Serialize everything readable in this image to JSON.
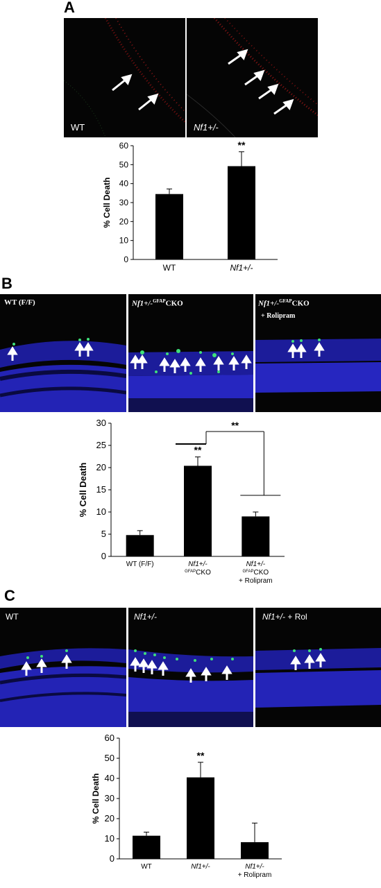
{
  "panels": [
    {
      "letter": "A",
      "images": [
        {
          "label": "WT"
        },
        {
          "label": "Nf1+/-"
        }
      ]
    },
    {
      "letter": "B",
      "images": [
        {
          "label": "WT (F/F)"
        },
        {
          "label_main": "Nf1+/-",
          "label_sup": "GFAP",
          "label_tail": "CKO"
        },
        {
          "label_main": "Nf1+/-",
          "label_sup": "GFAP",
          "label_tail": "CKO",
          "label_line2": "+ Rolipram"
        }
      ]
    },
    {
      "letter": "C",
      "images": [
        {
          "label": "WT"
        },
        {
          "label": "Nf1+/-"
        },
        {
          "label_main": "Nf1+/-",
          "label_tail": "+ Rol"
        }
      ]
    }
  ],
  "chart_data": [
    {
      "type": "bar",
      "ylabel": "% Cell Death",
      "ylim": [
        0,
        60
      ],
      "yticks": [
        0,
        10,
        20,
        30,
        40,
        50,
        60
      ],
      "categories": [
        "WT",
        "Nf1+/-"
      ],
      "values": [
        34.5,
        49.2
      ],
      "errors": [
        2.7,
        7.6
      ],
      "annotations": [
        "",
        "**"
      ]
    },
    {
      "type": "bar",
      "ylabel": "% Cell Death",
      "ylim": [
        0,
        30
      ],
      "yticks": [
        0,
        5,
        10,
        15,
        20,
        25,
        30
      ],
      "categories": [
        "WT (F/F)",
        "Nf1+/- GFAPCKO",
        "Nf1+/- GFAPCKO + Rolipram"
      ],
      "category_lines": [
        [
          "WT (F/F)"
        ],
        [
          "Nf1+/-",
          "GFAPCKO"
        ],
        [
          "Nf1+/-",
          "GFAPCKO",
          "+ Rolipram"
        ]
      ],
      "values": [
        4.8,
        20.4,
        9.0
      ],
      "errors": [
        1.0,
        2.0,
        1.0
      ],
      "annotations": [
        "",
        "**",
        ""
      ],
      "bracket_label": "**"
    },
    {
      "type": "bar",
      "ylabel": "% Cell Death",
      "ylim": [
        0,
        60
      ],
      "yticks": [
        0,
        10,
        20,
        30,
        40,
        50,
        60
      ],
      "categories": [
        "WT",
        "Nf1+/-",
        "Nf1+/- + Rolipram"
      ],
      "category_lines": [
        [
          "WT"
        ],
        [
          "Nf1+/-"
        ],
        [
          "Nf1+/-",
          "+ Rolipram"
        ]
      ],
      "values": [
        11.5,
        40.5,
        8.3
      ],
      "errors": [
        1.8,
        7.5,
        9.5
      ],
      "annotations": [
        "",
        "**",
        ""
      ]
    }
  ]
}
